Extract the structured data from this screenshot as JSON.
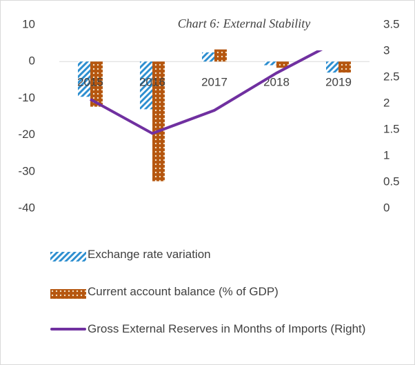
{
  "chart_data": {
    "type": "bar_line",
    "title": "Chart 6: External Stability",
    "categories": [
      "2015",
      "2016",
      "2017",
      "2018",
      "2019"
    ],
    "series": [
      {
        "name": "Exchange rate variation",
        "type": "bar",
        "color": "#2e8fd0",
        "values": [
          -9.6,
          -13,
          2.5,
          -1,
          -3
        ]
      },
      {
        "name": "Current account balance (% of GDP)",
        "type": "bar",
        "color": "#b5560f",
        "values": [
          -12.3,
          -32.6,
          3.3,
          -1.7,
          -3
        ]
      },
      {
        "name": "Gross External Reserves in Months of Imports (Right)",
        "type": "line",
        "axis": "y2",
        "color": "#7030a0",
        "values": [
          2.08,
          1.43,
          1.87,
          2.58,
          3.2
        ]
      }
    ],
    "ylim": [
      -40,
      10
    ],
    "yticks": [
      10,
      0,
      -10,
      -20,
      -30,
      -40
    ],
    "y2lim": [
      0,
      3.5
    ],
    "y2ticks": [
      3.5,
      3,
      2.5,
      2,
      1.5,
      1,
      0.5,
      0
    ],
    "legend": "bottom"
  }
}
